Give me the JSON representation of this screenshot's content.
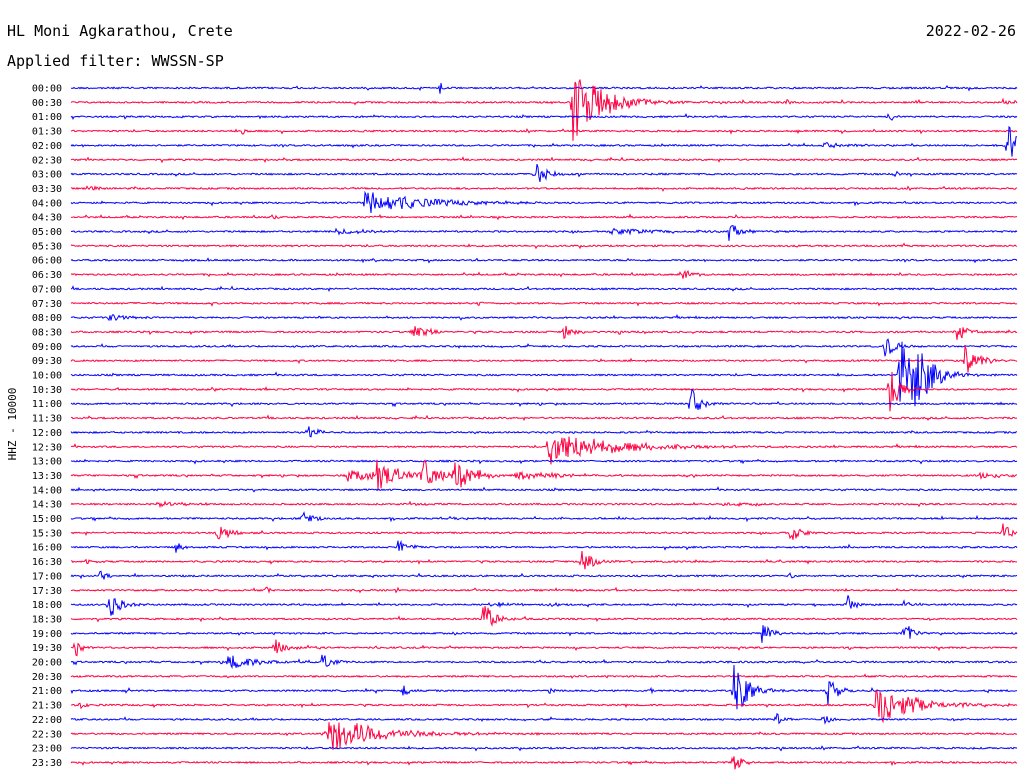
{
  "station": "HL Moni Agkarathou, Crete",
  "date": "2022-02-26",
  "filter": "Applied filter: WWSSN-SP",
  "channel_label": "HHZ - 10000",
  "colors": {
    "odd_trace": "#0000ff",
    "even_trace": "#ff0040",
    "text": "#000000"
  },
  "chart_data": {
    "type": "line",
    "subtype": "helicorder",
    "grid": false,
    "legend": "none",
    "time_labels": [
      "00:00",
      "00:30",
      "01:00",
      "01:30",
      "02:00",
      "02:30",
      "03:00",
      "03:30",
      "04:00",
      "04:30",
      "05:00",
      "05:30",
      "06:00",
      "06:30",
      "07:00",
      "07:30",
      "08:00",
      "08:30",
      "09:00",
      "09:30",
      "10:00",
      "10:30",
      "11:00",
      "11:30",
      "12:00",
      "12:30",
      "13:00",
      "13:30",
      "14:00",
      "14:30",
      "15:00",
      "15:30",
      "16:00",
      "16:30",
      "17:00",
      "17:30",
      "18:00",
      "18:30",
      "19:00",
      "19:30",
      "20:00",
      "20:30",
      "21:00",
      "21:30",
      "22:00",
      "22:30",
      "23:00",
      "23:30"
    ],
    "line_minutes": 30,
    "events": [
      {
        "line": 0,
        "t": 0.39,
        "amp": 0.5,
        "dur": 0.003
      },
      {
        "line": 1,
        "t": 0.53,
        "amp": 2.8,
        "dur": 0.03
      },
      {
        "line": 1,
        "t": 0.755,
        "amp": 0.3,
        "dur": 0.005
      },
      {
        "line": 1,
        "t": 0.985,
        "amp": 0.4,
        "dur": 0.006
      },
      {
        "line": 2,
        "t": 0.865,
        "amp": 0.4,
        "dur": 0.005
      },
      {
        "line": 3,
        "t": 0.18,
        "amp": 0.3,
        "dur": 0.004
      },
      {
        "line": 4,
        "t": 0.795,
        "amp": 0.2,
        "dur": 0.03
      },
      {
        "line": 4,
        "t": 0.99,
        "amp": 1.8,
        "dur": 0.02
      },
      {
        "line": 6,
        "t": 0.49,
        "amp": 1.2,
        "dur": 0.01
      },
      {
        "line": 6,
        "t": 0.87,
        "amp": 0.3,
        "dur": 0.005
      },
      {
        "line": 7,
        "t": 0.02,
        "amp": 0.4,
        "dur": 0.008
      },
      {
        "line": 8,
        "t": 0.31,
        "amp": 0.9,
        "dur": 0.06
      },
      {
        "line": 9,
        "t": 0.21,
        "amp": 0.2,
        "dur": 0.01
      },
      {
        "line": 10,
        "t": 0.28,
        "amp": 0.25,
        "dur": 0.03
      },
      {
        "line": 10,
        "t": 0.57,
        "amp": 0.25,
        "dur": 0.05
      },
      {
        "line": 10,
        "t": 0.695,
        "amp": 0.8,
        "dur": 0.01
      },
      {
        "line": 13,
        "t": 0.645,
        "amp": 0.5,
        "dur": 0.01
      },
      {
        "line": 15,
        "t": 0.43,
        "amp": 0.2,
        "dur": 0.004
      },
      {
        "line": 16,
        "t": 0.04,
        "amp": 0.3,
        "dur": 0.015
      },
      {
        "line": 17,
        "t": 0.36,
        "amp": 0.6,
        "dur": 0.015
      },
      {
        "line": 17,
        "t": 0.52,
        "amp": 0.6,
        "dur": 0.01
      },
      {
        "line": 17,
        "t": 0.935,
        "amp": 0.8,
        "dur": 0.01
      },
      {
        "line": 18,
        "t": 0.86,
        "amp": 0.9,
        "dur": 0.01
      },
      {
        "line": 19,
        "t": 0.945,
        "amp": 1.2,
        "dur": 0.01
      },
      {
        "line": 19,
        "t": 0.96,
        "amp": 0.5,
        "dur": 0.01
      },
      {
        "line": 20,
        "t": 0.875,
        "amp": 3.0,
        "dur": 0.015
      },
      {
        "line": 20,
        "t": 0.89,
        "amp": 3.5,
        "dur": 0.015
      },
      {
        "line": 21,
        "t": 0.865,
        "amp": 2.0,
        "dur": 0.01
      },
      {
        "line": 22,
        "t": 0.655,
        "amp": 1.2,
        "dur": 0.01
      },
      {
        "line": 24,
        "t": 0.25,
        "amp": 0.8,
        "dur": 0.008
      },
      {
        "line": 25,
        "t": 0.505,
        "amp": 1.3,
        "dur": 0.06
      },
      {
        "line": 27,
        "t": 0.29,
        "amp": 0.6,
        "dur": 0.04
      },
      {
        "line": 27,
        "t": 0.32,
        "amp": 1.2,
        "dur": 0.02
      },
      {
        "line": 27,
        "t": 0.37,
        "amp": 1.3,
        "dur": 0.02
      },
      {
        "line": 27,
        "t": 0.405,
        "amp": 1.2,
        "dur": 0.02
      },
      {
        "line": 27,
        "t": 0.47,
        "amp": 0.3,
        "dur": 0.04
      },
      {
        "line": 27,
        "t": 0.96,
        "amp": 0.2,
        "dur": 0.03
      },
      {
        "line": 29,
        "t": 0.09,
        "amp": 0.2,
        "dur": 0.03
      },
      {
        "line": 29,
        "t": 0.69,
        "amp": 0.15,
        "dur": 0.04
      },
      {
        "line": 30,
        "t": 0.245,
        "amp": 0.6,
        "dur": 0.01
      },
      {
        "line": 30,
        "t": 0.4,
        "amp": 0.1,
        "dur": 0.02
      },
      {
        "line": 31,
        "t": 0.155,
        "amp": 0.8,
        "dur": 0.01
      },
      {
        "line": 31,
        "t": 0.76,
        "amp": 0.8,
        "dur": 0.01
      },
      {
        "line": 31,
        "t": 0.985,
        "amp": 0.7,
        "dur": 0.01
      },
      {
        "line": 32,
        "t": 0.11,
        "amp": 0.6,
        "dur": 0.005
      },
      {
        "line": 32,
        "t": 0.345,
        "amp": 0.6,
        "dur": 0.01
      },
      {
        "line": 33,
        "t": 0.54,
        "amp": 1.0,
        "dur": 0.01
      },
      {
        "line": 33,
        "t": 0.015,
        "amp": 0.3,
        "dur": 0.005
      },
      {
        "line": 34,
        "t": 0.03,
        "amp": 0.4,
        "dur": 0.008
      },
      {
        "line": 34,
        "t": 0.76,
        "amp": 0.2,
        "dur": 0.004
      },
      {
        "line": 35,
        "t": 0.205,
        "amp": 0.3,
        "dur": 0.004
      },
      {
        "line": 35,
        "t": 0.53,
        "amp": 0.2,
        "dur": 0.004
      },
      {
        "line": 36,
        "t": 0.04,
        "amp": 1.2,
        "dur": 0.01
      },
      {
        "line": 36,
        "t": 0.45,
        "amp": 0.15,
        "dur": 0.02
      },
      {
        "line": 36,
        "t": 0.505,
        "amp": 0.4,
        "dur": 0.005
      },
      {
        "line": 36,
        "t": 0.82,
        "amp": 0.8,
        "dur": 0.008
      },
      {
        "line": 36,
        "t": 0.88,
        "amp": 0.3,
        "dur": 0.005
      },
      {
        "line": 37,
        "t": 0.435,
        "amp": 1.5,
        "dur": 0.01
      },
      {
        "line": 37,
        "t": 0.69,
        "amp": 0.2,
        "dur": 0.004
      },
      {
        "line": 38,
        "t": 0.405,
        "amp": 0.2,
        "dur": 0.004
      },
      {
        "line": 38,
        "t": 0.73,
        "amp": 0.8,
        "dur": 0.008
      },
      {
        "line": 38,
        "t": 0.88,
        "amp": 1.0,
        "dur": 0.008
      },
      {
        "line": 39,
        "t": 0.005,
        "amp": 0.8,
        "dur": 0.005
      },
      {
        "line": 39,
        "t": 0.215,
        "amp": 0.8,
        "dur": 0.01
      },
      {
        "line": 40,
        "t": 0.165,
        "amp": 0.6,
        "dur": 0.03
      },
      {
        "line": 40,
        "t": 0.265,
        "amp": 0.6,
        "dur": 0.01
      },
      {
        "line": 42,
        "t": 0.35,
        "amp": 0.6,
        "dur": 0.006
      },
      {
        "line": 42,
        "t": 0.505,
        "amp": 0.3,
        "dur": 0.004
      },
      {
        "line": 42,
        "t": 0.61,
        "amp": 0.3,
        "dur": 0.004
      },
      {
        "line": 42,
        "t": 0.7,
        "amp": 2.0,
        "dur": 0.015
      },
      {
        "line": 42,
        "t": 0.8,
        "amp": 1.2,
        "dur": 0.01
      },
      {
        "line": 43,
        "t": 0.01,
        "amp": 0.3,
        "dur": 0.005
      },
      {
        "line": 43,
        "t": 0.85,
        "amp": 1.5,
        "dur": 0.04
      },
      {
        "line": 44,
        "t": 0.745,
        "amp": 0.6,
        "dur": 0.006
      },
      {
        "line": 44,
        "t": 0.795,
        "amp": 0.6,
        "dur": 0.006
      },
      {
        "line": 45,
        "t": 0.27,
        "amp": 1.4,
        "dur": 0.05
      },
      {
        "line": 46,
        "t": 0.75,
        "amp": 0.2,
        "dur": 0.004
      },
      {
        "line": 47,
        "t": 0.7,
        "amp": 0.8,
        "dur": 0.008
      }
    ]
  }
}
